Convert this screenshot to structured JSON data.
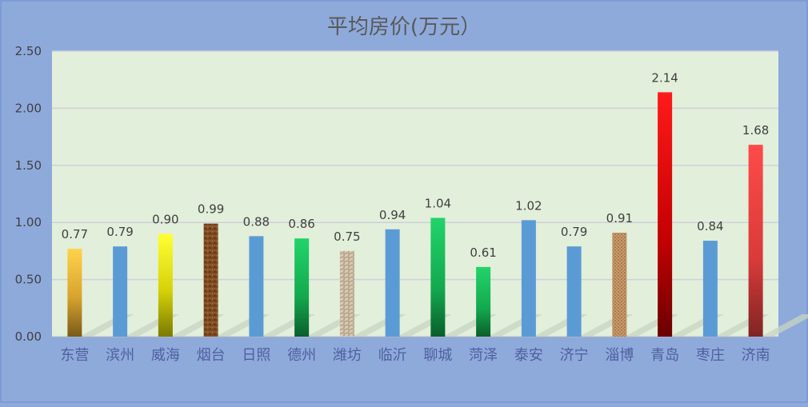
{
  "chart_data": {
    "type": "bar",
    "title": "平均房价(万元）",
    "xlabel": "",
    "ylabel": "",
    "ylim": [
      0,
      2.5
    ],
    "yticks": [
      "0.00",
      "0.50",
      "1.00",
      "1.50",
      "2.00",
      "2.50"
    ],
    "grid": true,
    "legend": "none",
    "categories": [
      "东营",
      "滨州",
      "威海",
      "烟台",
      "日照",
      "德州",
      "潍坊",
      "临沂",
      "聊城",
      "菏泽",
      "泰安",
      "济宁",
      "淄博",
      "青岛",
      "枣庄",
      "济南"
    ],
    "values": [
      0.77,
      0.79,
      0.9,
      0.99,
      0.88,
      0.86,
      0.75,
      0.94,
      1.04,
      0.61,
      1.02,
      0.79,
      0.91,
      2.14,
      0.84,
      1.68
    ],
    "labels": [
      "0.77",
      "0.79",
      "0.90",
      "0.99",
      "0.88",
      "0.86",
      "0.75",
      "0.94",
      "1.04",
      "0.61",
      "1.02",
      "0.79",
      "0.91",
      "2.14",
      "0.84",
      "1.68"
    ],
    "fills": [
      "gold-gradient",
      "blue",
      "yellow-gradient",
      "brown-texture",
      "blue",
      "green-gradient",
      "paper-texture",
      "blue",
      "green-gradient",
      "green-gradient",
      "blue",
      "blue",
      "burlap-texture",
      "red-gradient",
      "blue",
      "coral-gradient"
    ],
    "colors": {
      "page_background": "#8eaadb",
      "plot_background": "#e2efda",
      "blue": "#5b9bd5",
      "gridline": "#d0cfdc",
      "label_text": "#404040",
      "category_text": "#4f5f9f",
      "title_text": "#595959"
    }
  }
}
